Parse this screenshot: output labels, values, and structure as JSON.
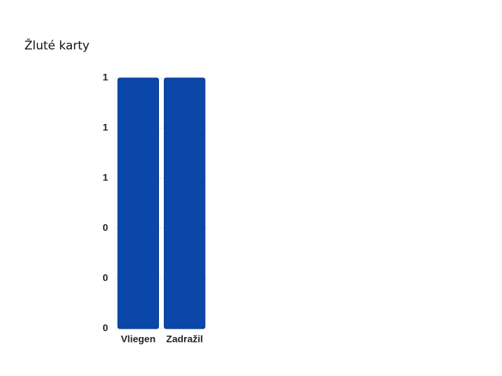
{
  "chart_data": {
    "type": "bar",
    "title": "Žluté karty",
    "categories": [
      "Vliegen",
      "Zadražil"
    ],
    "values": [
      1,
      1
    ],
    "color": "#0a47a9",
    "ylim": [
      0,
      1
    ],
    "yticks": [
      0,
      {
        "value": 0.2,
        "label": "0"
      },
      {
        "value": 0.4,
        "label": "0"
      },
      {
        "value": 0.6,
        "label": "1"
      },
      {
        "value": 0.8,
        "label": "1"
      },
      1
    ],
    "grid": true
  }
}
